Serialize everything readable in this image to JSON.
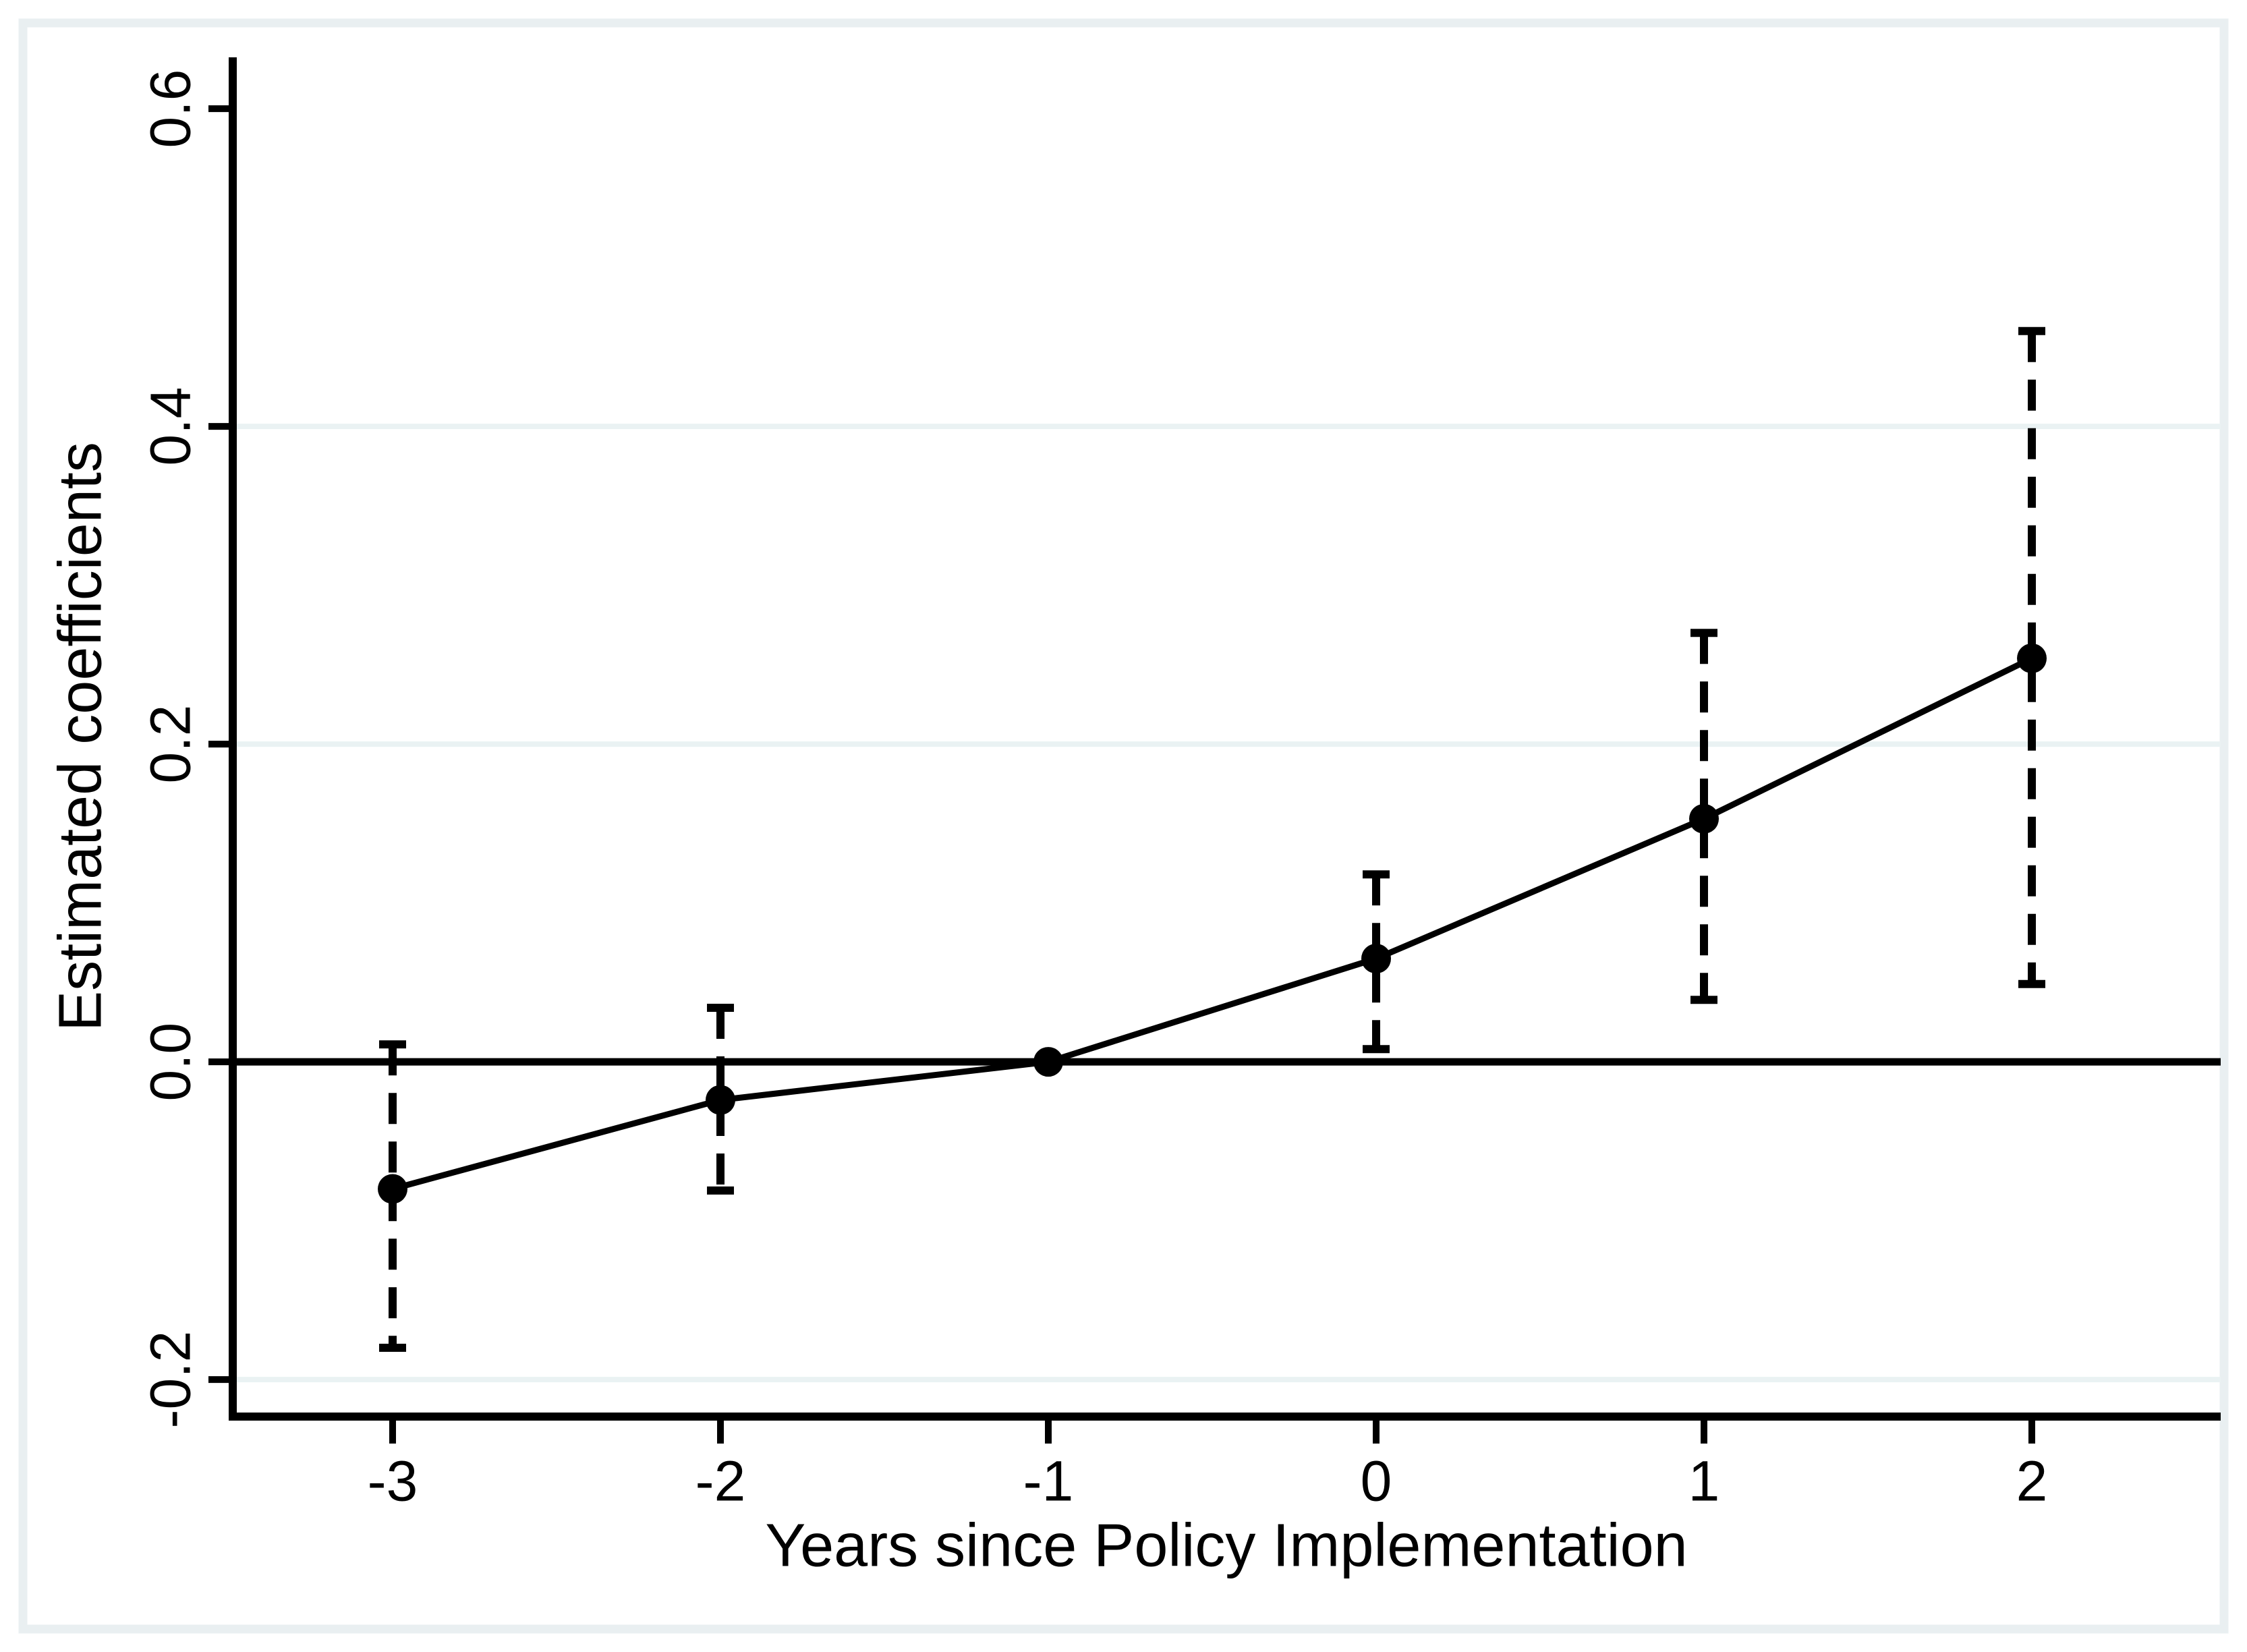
{
  "figure": {
    "background_color": "#ffffff",
    "border_color": "#e9eff1",
    "grid_color": "#eaf2f3",
    "data_color": "#000000"
  },
  "chart_data": {
    "type": "line",
    "title": "",
    "xlabel": "Years since Policy Implementation",
    "ylabel": "Estimated coefficients",
    "x": [
      -3,
      -2,
      -1,
      0,
      1,
      2
    ],
    "series": [
      {
        "name": "Estimated coefficients",
        "values": [
          -0.08,
          -0.024,
          0.0,
          0.065,
          0.153,
          0.254
        ]
      }
    ],
    "ci_low": [
      -0.18,
      -0.081,
      null,
      0.008,
      0.039,
      0.049
    ],
    "ci_high": [
      0.011,
      0.034,
      null,
      0.118,
      0.27,
      0.46
    ],
    "reference_period": -1,
    "xticks": [
      "-3",
      "-2",
      "-1",
      "0",
      "1",
      "2"
    ],
    "yticks": [
      "0.6",
      "0.4",
      "0.2",
      "0.0",
      "-0.2"
    ],
    "ytick_values": [
      0.6,
      0.4,
      0.2,
      0.0,
      -0.2
    ],
    "grid_values": [
      0.4,
      0.2,
      -0.2
    ],
    "zero_line": 0,
    "xlim": [
      -3.4877,
      2.5761
    ],
    "ylim": [
      -0.2233,
      0.6323
    ],
    "grid": "on",
    "legend": "none",
    "ci_style": "dashed-whiskers",
    "marker": "filled-circle"
  }
}
